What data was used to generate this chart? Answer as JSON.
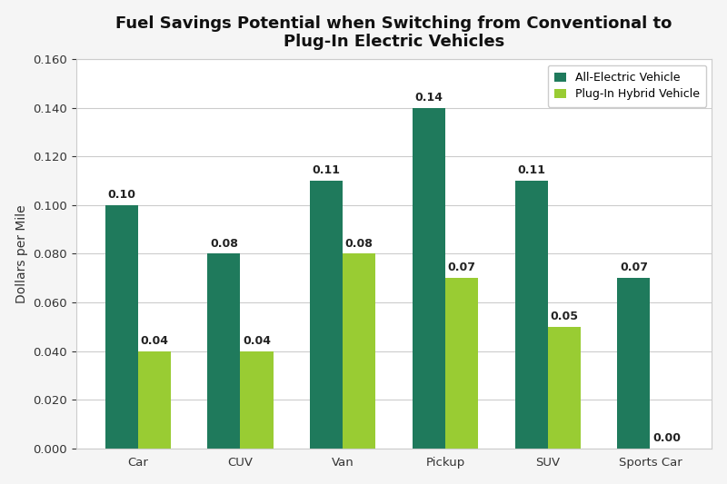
{
  "title": "Fuel Savings Potential when Switching from Conventional to\nPlug-In Electric Vehicles",
  "ylabel": "Dollars per Mile",
  "categories": [
    "Car",
    "CUV",
    "Van",
    "Pickup",
    "SUV",
    "Sports Car"
  ],
  "all_electric": [
    0.1,
    0.08,
    0.11,
    0.14,
    0.11,
    0.07
  ],
  "plug_in_hybrid": [
    0.04,
    0.04,
    0.08,
    0.07,
    0.05,
    0.0
  ],
  "all_electric_color": "#1f7a5c",
  "plug_in_hybrid_color": "#99cc33",
  "ylim": [
    0,
    0.16
  ],
  "yticks": [
    0.0,
    0.02,
    0.04,
    0.06,
    0.08,
    0.1,
    0.12,
    0.14,
    0.16
  ],
  "legend_labels": [
    "All-Electric Vehicle",
    "Plug-In Hybrid Vehicle"
  ],
  "bar_width": 0.32,
  "background_color": "#ffffff",
  "outer_background": "#f5f5f5",
  "grid_color": "#cccccc",
  "spine_color": "#cccccc",
  "title_fontsize": 13,
  "label_fontsize": 10,
  "tick_fontsize": 9.5,
  "annotation_fontsize": 9
}
